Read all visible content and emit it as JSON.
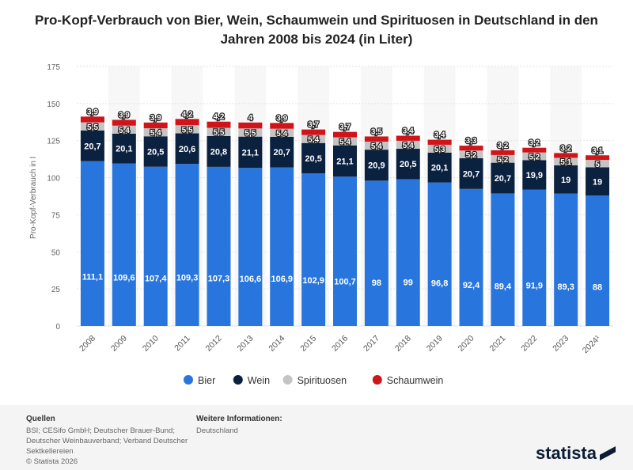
{
  "chart_data": {
    "type": "bar",
    "stacked": true,
    "title": "Pro-Kopf-Verbrauch von Bier, Wein, Schaumwein und Spirituosen in Deutschland in den Jahren 2008 bis 2024 (in Liter)",
    "ylabel": "Pro-Kopf-Verbrauch in l",
    "xlabel": "",
    "ylim": [
      0,
      175
    ],
    "yticks": [
      0,
      25,
      50,
      75,
      100,
      125,
      150,
      175
    ],
    "grid": true,
    "legend": "bottom",
    "categories": [
      "2008",
      "2009",
      "2010",
      "2011",
      "2012",
      "2013",
      "2014",
      "2015",
      "2016",
      "2017",
      "2018",
      "2019",
      "2020",
      "2021",
      "2022",
      "2023",
      "2024¹"
    ],
    "series": [
      {
        "name": "Bier",
        "color": "#2876dd",
        "values": [
          "111,1",
          "109,6",
          "107,4",
          "109,3",
          "107,3",
          "106,6",
          "106,9",
          "102,9",
          "100,7",
          "98",
          "99",
          "96,8",
          "92,4",
          "89,4",
          "91,9",
          "89,3",
          "88"
        ]
      },
      {
        "name": "Wein",
        "color": "#0b2140",
        "values": [
          "20,7",
          "20,1",
          "20,5",
          "20,6",
          "20,8",
          "21,1",
          "20,7",
          "20,5",
          "21,1",
          "20,9",
          "20,5",
          "20,1",
          "20,7",
          "20,7",
          "19,9",
          "19",
          "19"
        ]
      },
      {
        "name": "Spirituosen",
        "color": "#c4c4c4",
        "values": [
          "5,5",
          "5,4",
          "5,4",
          "5,5",
          "5,5",
          "5,5",
          "5,4",
          "5,4",
          "5,4",
          "5,4",
          "5,4",
          "5,3",
          "5,2",
          "5,2",
          "5,2",
          "5,1",
          "5"
        ]
      },
      {
        "name": "Schaumwein",
        "color": "#d0141a",
        "values": [
          "3,9",
          "3,9",
          "3,9",
          "4,2",
          "4,2",
          "4",
          "3,9",
          "3,7",
          "3,7",
          "3,5",
          "3,4",
          "3,4",
          "3,3",
          "3,2",
          "3,2",
          "3,2",
          "3,1"
        ]
      }
    ]
  },
  "footer": {
    "sources_heading": "Quellen",
    "sources": "BSI; CESifo GmbH; Deutscher Brauer-Bund; Deutscher Weinbauverband; Verband Deutscher Sektkellereien",
    "copyright": "© Statista 2026",
    "info_heading": "Weitere Informationen:",
    "info": "Deutschland",
    "logo": "statista"
  }
}
